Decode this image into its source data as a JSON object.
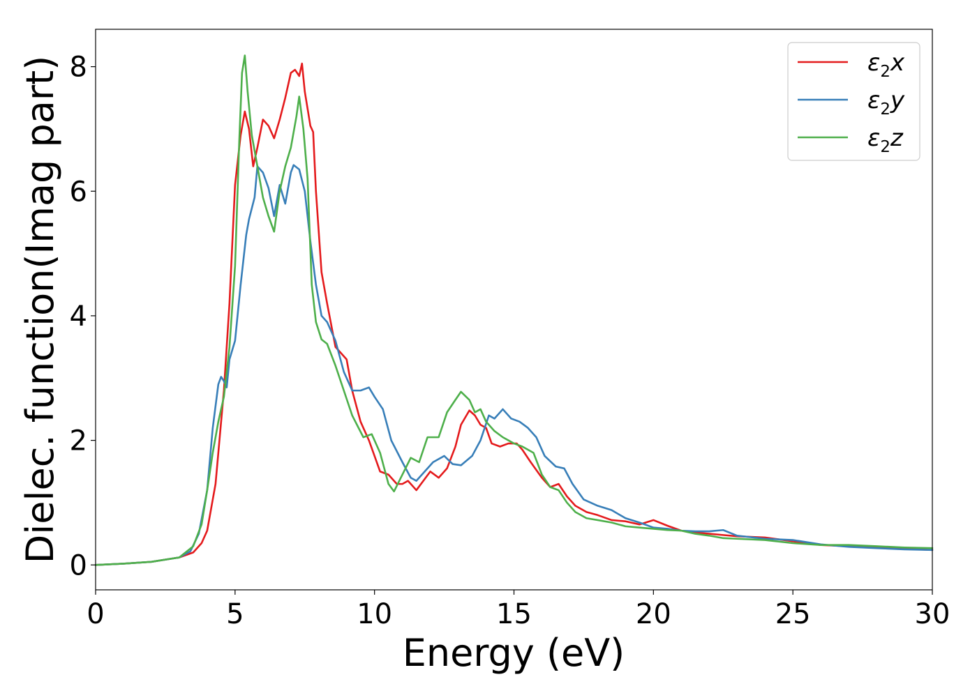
{
  "chart_data": {
    "type": "line",
    "title": "",
    "xlabel": "Energy (eV)",
    "ylabel": "Dielec. function(Imag part)",
    "xlim": [
      0,
      30
    ],
    "ylim": [
      -0.4,
      8.6
    ],
    "xticks": [
      "0",
      "5",
      "10",
      "15",
      "20",
      "25",
      "30"
    ],
    "yticks": [
      "0",
      "2",
      "4",
      "6",
      "8"
    ],
    "grid": false,
    "legend_position": "top-right",
    "series": [
      {
        "name": "ε₂x",
        "name_main": "ε",
        "name_sub": "2",
        "name_var": "x",
        "color": "#e41a1c",
        "x": [
          0,
          1,
          2,
          3,
          3.5,
          3.8,
          4.0,
          4.3,
          4.6,
          4.8,
          5.0,
          5.1,
          5.2,
          5.35,
          5.5,
          5.65,
          5.8,
          6.0,
          6.2,
          6.4,
          6.6,
          6.8,
          7.0,
          7.15,
          7.3,
          7.4,
          7.5,
          7.7,
          7.8,
          7.9,
          8.1,
          8.3,
          8.6,
          8.8,
          9.0,
          9.2,
          9.5,
          9.8,
          10.0,
          10.2,
          10.5,
          10.8,
          11.0,
          11.2,
          11.5,
          11.8,
          12.0,
          12.3,
          12.6,
          12.9,
          13.1,
          13.4,
          13.6,
          13.8,
          14.0,
          14.2,
          14.5,
          14.8,
          15.1,
          15.3,
          15.6,
          16.0,
          16.3,
          16.6,
          16.9,
          17.2,
          17.6,
          18.0,
          18.5,
          19.0,
          19.5,
          20.0,
          20.5,
          21.0,
          21.5,
          22.0,
          22.5,
          23.0,
          24.0,
          25.0,
          26.0,
          27.0,
          28.0,
          29.0,
          30.0
        ],
        "y": [
          0,
          0.02,
          0.05,
          0.12,
          0.2,
          0.35,
          0.55,
          1.3,
          2.8,
          4.2,
          6.1,
          6.5,
          6.9,
          7.28,
          7.0,
          6.4,
          6.7,
          7.15,
          7.05,
          6.85,
          7.15,
          7.5,
          7.9,
          7.95,
          7.85,
          8.05,
          7.6,
          7.05,
          6.95,
          6.0,
          4.7,
          4.2,
          3.5,
          3.4,
          3.3,
          2.8,
          2.3,
          2.0,
          1.75,
          1.5,
          1.45,
          1.3,
          1.3,
          1.35,
          1.2,
          1.38,
          1.5,
          1.4,
          1.55,
          1.9,
          2.25,
          2.48,
          2.4,
          2.25,
          2.2,
          1.95,
          1.9,
          1.95,
          1.95,
          1.85,
          1.65,
          1.4,
          1.25,
          1.3,
          1.1,
          0.95,
          0.85,
          0.8,
          0.72,
          0.7,
          0.65,
          0.72,
          0.63,
          0.55,
          0.52,
          0.5,
          0.48,
          0.46,
          0.44,
          0.38,
          0.32,
          0.3,
          0.28,
          0.26,
          0.24
        ]
      },
      {
        "name": "ε₂y",
        "name_main": "ε",
        "name_sub": "2",
        "name_var": "y",
        "color": "#377eb8",
        "x": [
          0,
          1,
          2,
          3,
          3.4,
          3.7,
          4.0,
          4.2,
          4.4,
          4.5,
          4.6,
          4.7,
          4.8,
          5.0,
          5.2,
          5.4,
          5.5,
          5.7,
          5.8,
          6.0,
          6.2,
          6.4,
          6.6,
          6.8,
          7.0,
          7.1,
          7.3,
          7.5,
          7.7,
          7.9,
          8.1,
          8.3,
          8.6,
          8.9,
          9.2,
          9.5,
          9.8,
          10.0,
          10.3,
          10.6,
          11.0,
          11.3,
          11.5,
          11.8,
          12.1,
          12.5,
          12.8,
          13.1,
          13.5,
          13.8,
          14.1,
          14.3,
          14.6,
          14.9,
          15.2,
          15.5,
          15.8,
          16.1,
          16.5,
          16.8,
          17.1,
          17.5,
          18.0,
          18.5,
          19.0,
          19.5,
          20.0,
          20.5,
          21.0,
          21.5,
          22.0,
          22.5,
          23.0,
          24.0,
          25.0,
          26.0,
          27.0,
          28.0,
          29.0,
          30.0
        ],
        "y": [
          0,
          0.02,
          0.05,
          0.12,
          0.22,
          0.5,
          1.2,
          2.2,
          2.9,
          3.02,
          2.95,
          2.85,
          3.3,
          3.6,
          4.5,
          5.3,
          5.55,
          5.9,
          6.4,
          6.3,
          6.05,
          5.6,
          6.1,
          5.8,
          6.3,
          6.42,
          6.35,
          6.0,
          5.2,
          4.5,
          4.0,
          3.9,
          3.6,
          3.1,
          2.8,
          2.8,
          2.85,
          2.7,
          2.5,
          2.0,
          1.65,
          1.4,
          1.35,
          1.5,
          1.65,
          1.75,
          1.62,
          1.6,
          1.75,
          2.0,
          2.4,
          2.35,
          2.5,
          2.35,
          2.3,
          2.2,
          2.05,
          1.75,
          1.58,
          1.55,
          1.3,
          1.05,
          0.95,
          0.88,
          0.75,
          0.68,
          0.6,
          0.58,
          0.55,
          0.54,
          0.54,
          0.56,
          0.47,
          0.42,
          0.4,
          0.33,
          0.29,
          0.27,
          0.25,
          0.24
        ]
      },
      {
        "name": "ε₂z",
        "name_main": "ε",
        "name_sub": "2",
        "name_var": "z",
        "color": "#4daf4a",
        "x": [
          0,
          1,
          2,
          3,
          3.5,
          3.8,
          4.0,
          4.2,
          4.4,
          4.6,
          4.8,
          5.0,
          5.15,
          5.25,
          5.35,
          5.45,
          5.6,
          5.8,
          6.0,
          6.2,
          6.4,
          6.6,
          6.8,
          7.0,
          7.2,
          7.3,
          7.45,
          7.6,
          7.75,
          7.9,
          8.1,
          8.3,
          8.6,
          8.9,
          9.2,
          9.6,
          9.9,
          10.2,
          10.5,
          10.7,
          11.0,
          11.3,
          11.6,
          11.9,
          12.3,
          12.6,
          12.9,
          13.1,
          13.4,
          13.6,
          13.8,
          14.0,
          14.3,
          14.6,
          15.0,
          15.3,
          15.7,
          16.0,
          16.3,
          16.6,
          16.9,
          17.2,
          17.6,
          18.0,
          18.5,
          19.0,
          19.5,
          20.0,
          20.5,
          21.0,
          21.5,
          22.0,
          22.5,
          23.0,
          24.0,
          25.0,
          26.0,
          27.0,
          28.0,
          29.0,
          30.0
        ],
        "y": [
          0,
          0.02,
          0.05,
          0.12,
          0.3,
          0.65,
          1.2,
          1.8,
          2.3,
          2.7,
          3.5,
          4.8,
          6.8,
          7.9,
          8.18,
          7.6,
          6.9,
          6.4,
          5.9,
          5.6,
          5.35,
          6.0,
          6.4,
          6.7,
          7.2,
          7.52,
          7.0,
          6.2,
          4.5,
          3.9,
          3.62,
          3.55,
          3.2,
          2.8,
          2.4,
          2.05,
          2.1,
          1.8,
          1.3,
          1.18,
          1.45,
          1.72,
          1.65,
          2.05,
          2.05,
          2.45,
          2.65,
          2.78,
          2.65,
          2.45,
          2.5,
          2.3,
          2.15,
          2.05,
          1.95,
          1.9,
          1.8,
          1.45,
          1.25,
          1.2,
          1.0,
          0.85,
          0.75,
          0.72,
          0.68,
          0.62,
          0.6,
          0.58,
          0.56,
          0.55,
          0.5,
          0.47,
          0.43,
          0.42,
          0.4,
          0.35,
          0.32,
          0.32,
          0.3,
          0.28,
          0.27
        ]
      }
    ]
  }
}
